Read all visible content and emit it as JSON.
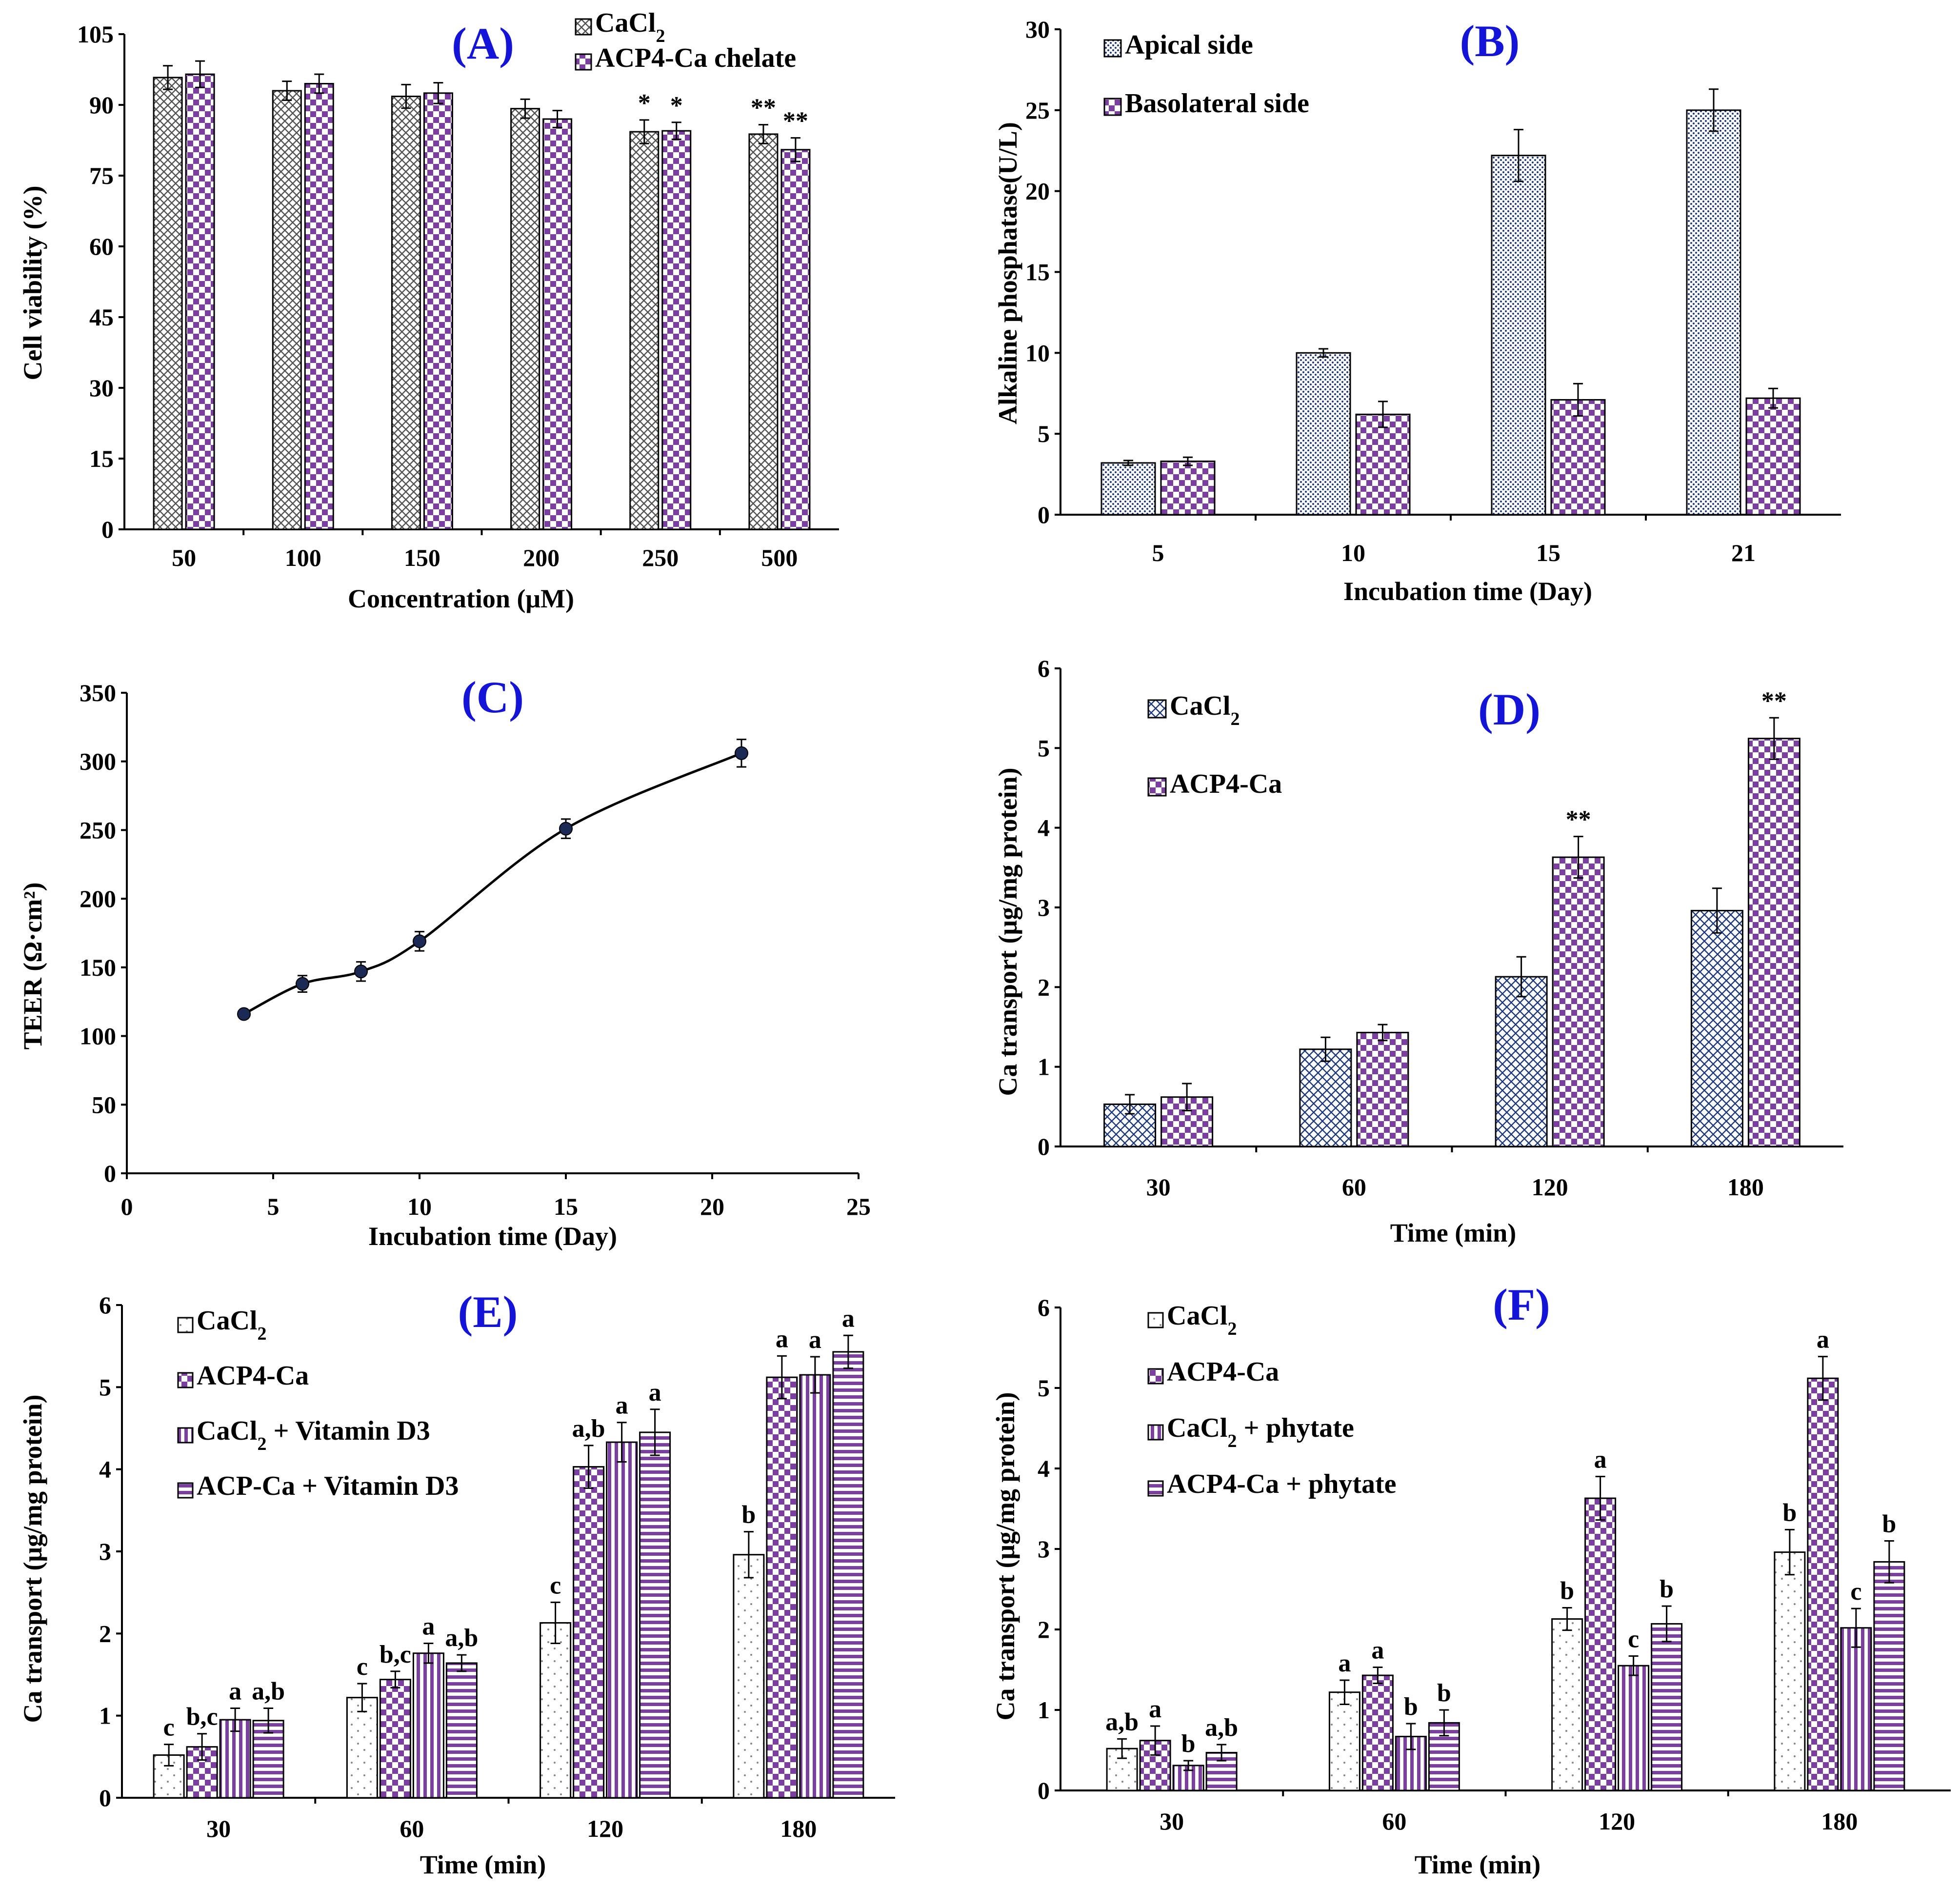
{
  "colors": {
    "purple": "#7b3fa0",
    "blue_dark": "#1f3a7a",
    "gray": "#6a6a6a",
    "title_blue": "#1414d8"
  },
  "chart_data": [
    {
      "panel": "(A)",
      "type": "bar",
      "xlabel": "Concentration (μM)",
      "ylabel": "Cell viability (%)",
      "categories": [
        "50",
        "100",
        "150",
        "200",
        "250",
        "500"
      ],
      "ylim": [
        0,
        105
      ],
      "yticks": [
        "0",
        "15",
        "30",
        "45",
        "60",
        "75",
        "90",
        "105"
      ],
      "legend": [
        {
          "text": "CaCl",
          "sub": "2"
        },
        {
          "text": "ACP4-Ca chelate",
          "sub": ""
        }
      ],
      "series": [
        {
          "name": "CaCl2",
          "pattern": "cross",
          "values": [
            95.8,
            93.0,
            91.8,
            89.2,
            84.3,
            83.8
          ],
          "errors": [
            2.5,
            2.0,
            2.5,
            2.0,
            2.5,
            2.0
          ],
          "annot": [
            "",
            "",
            "",
            "",
            "*",
            "**"
          ]
        },
        {
          "name": "ACP4-Ca chelate",
          "pattern": "check",
          "values": [
            96.5,
            94.5,
            92.5,
            87.0,
            84.5,
            80.5
          ],
          "errors": [
            2.8,
            2.0,
            2.2,
            1.8,
            1.8,
            2.5
          ],
          "annot": [
            "",
            "",
            "",
            "",
            "*",
            "**"
          ]
        }
      ]
    },
    {
      "panel": "(B)",
      "type": "bar",
      "xlabel": "Incubation time (Day)",
      "ylabel": "Alkaline phosphatase(U/L)",
      "categories": [
        "5",
        "10",
        "15",
        "21"
      ],
      "ylim": [
        0,
        30
      ],
      "yticks": [
        "0",
        "5",
        "10",
        "15",
        "20",
        "25",
        "30"
      ],
      "legend": [
        {
          "text": "Apical side",
          "sub": ""
        },
        {
          "text": "Basolateral side",
          "sub": ""
        }
      ],
      "series": [
        {
          "name": "Apical side",
          "pattern": "dots",
          "values": [
            3.2,
            10.0,
            22.2,
            25.0
          ],
          "errors": [
            0.15,
            0.25,
            1.6,
            1.3
          ],
          "annot": [
            "",
            "",
            "",
            ""
          ]
        },
        {
          "name": "Basolateral side",
          "pattern": "check",
          "values": [
            3.3,
            6.2,
            7.1,
            7.2
          ],
          "errors": [
            0.25,
            0.8,
            1.0,
            0.6
          ],
          "annot": [
            "",
            "",
            "",
            ""
          ]
        }
      ]
    },
    {
      "panel": "(C)",
      "type": "line",
      "xlabel": "Incubation time (Day)",
      "ylabel": "TEER (Ω·cm²)",
      "x": [
        4,
        6,
        8,
        10,
        15,
        21
      ],
      "y": [
        116,
        138,
        147,
        169,
        251,
        306
      ],
      "errors": [
        3,
        6,
        7,
        7,
        7,
        10
      ],
      "xlim": [
        0,
        25
      ],
      "xticks": [
        "0",
        "5",
        "10",
        "15",
        "20",
        "25"
      ],
      "ylim": [
        0,
        350
      ],
      "yticks": [
        "0",
        "50",
        "100",
        "150",
        "200",
        "250",
        "300",
        "350"
      ]
    },
    {
      "panel": "(D)",
      "type": "bar",
      "xlabel": "Time (min)",
      "ylabel": "Ca transport (μg/mg protein)",
      "categories": [
        "30",
        "60",
        "120",
        "180"
      ],
      "ylim": [
        0,
        6
      ],
      "yticks": [
        "0",
        "1",
        "2",
        "3",
        "4",
        "5",
        "6"
      ],
      "legend": [
        {
          "text": "CaCl",
          "sub": "2"
        },
        {
          "text": "ACP4-Ca",
          "sub": ""
        }
      ],
      "series": [
        {
          "name": "CaCl2",
          "pattern": "cross_blue",
          "values": [
            0.53,
            1.22,
            2.13,
            2.96
          ],
          "errors": [
            0.12,
            0.15,
            0.25,
            0.28
          ],
          "annot": [
            "",
            "",
            "",
            ""
          ]
        },
        {
          "name": "ACP4-Ca",
          "pattern": "check",
          "values": [
            0.62,
            1.43,
            3.63,
            5.12
          ],
          "errors": [
            0.17,
            0.1,
            0.26,
            0.26
          ],
          "annot": [
            "",
            "",
            "**",
            "**"
          ]
        }
      ]
    },
    {
      "panel": "(E)",
      "type": "bar",
      "xlabel": "Time (min)",
      "ylabel": "Ca transport (μg/mg protein)",
      "categories": [
        "30",
        "60",
        "120",
        "180"
      ],
      "ylim": [
        0,
        6
      ],
      "yticks": [
        "0",
        "1",
        "2",
        "3",
        "4",
        "5",
        "6"
      ],
      "legend": [
        {
          "text": "CaCl",
          "sub": "2",
          "after": ""
        },
        {
          "text": "ACP4-Ca",
          "sub": "",
          "after": ""
        },
        {
          "text": "CaCl",
          "sub": "2",
          "after": " + Vitamin D3"
        },
        {
          "text": "ACP-Ca + Vitamin D3",
          "sub": "",
          "after": ""
        }
      ],
      "series": [
        {
          "name": "CaCl2",
          "pattern": "sparse",
          "values": [
            0.52,
            1.22,
            2.13,
            2.96
          ],
          "errors": [
            0.13,
            0.17,
            0.25,
            0.28
          ],
          "annot": [
            "c",
            "c",
            "c",
            "b"
          ]
        },
        {
          "name": "ACP4-Ca",
          "pattern": "check",
          "values": [
            0.62,
            1.44,
            4.03,
            5.12
          ],
          "errors": [
            0.16,
            0.1,
            0.26,
            0.26
          ],
          "annot": [
            "b,c",
            "b,c",
            "a,b",
            "a"
          ]
        },
        {
          "name": "CaCl2 + Vitamin D3",
          "pattern": "vstripe",
          "values": [
            0.95,
            1.76,
            4.33,
            5.15
          ],
          "errors": [
            0.14,
            0.12,
            0.24,
            0.22
          ],
          "annot": [
            "a",
            "a",
            "a",
            "a"
          ]
        },
        {
          "name": "ACP-Ca + Vitamin D3",
          "pattern": "hstripe",
          "values": [
            0.94,
            1.64,
            4.45,
            5.43
          ],
          "errors": [
            0.15,
            0.1,
            0.28,
            0.2
          ],
          "annot": [
            "a,b",
            "a,b",
            "a",
            "a"
          ]
        }
      ]
    },
    {
      "panel": "(F)",
      "type": "bar",
      "xlabel": "Time (min)",
      "ylabel": "Ca transport (μg/mg protein)",
      "categories": [
        "30",
        "60",
        "120",
        "180"
      ],
      "ylim": [
        0,
        6
      ],
      "yticks": [
        "0",
        "1",
        "2",
        "3",
        "4",
        "5",
        "6"
      ],
      "legend": [
        {
          "text": "CaCl",
          "sub": "2",
          "after": ""
        },
        {
          "text": "ACP4-Ca",
          "sub": "",
          "after": ""
        },
        {
          "text": "CaCl",
          "sub": "2",
          "after": " + phytate"
        },
        {
          "text": "ACP4-Ca + phytate",
          "sub": "",
          "after": ""
        }
      ],
      "series": [
        {
          "name": "CaCl2",
          "pattern": "sparse",
          "values": [
            0.52,
            1.22,
            2.13,
            2.96
          ],
          "errors": [
            0.12,
            0.15,
            0.14,
            0.28
          ],
          "annot": [
            "a,b",
            "a",
            "b",
            "b"
          ]
        },
        {
          "name": "ACP4-Ca",
          "pattern": "check",
          "values": [
            0.62,
            1.43,
            3.63,
            5.12
          ],
          "errors": [
            0.18,
            0.1,
            0.27,
            0.27
          ],
          "annot": [
            "a",
            "a",
            "a",
            "a"
          ]
        },
        {
          "name": "CaCl2 + phytate",
          "pattern": "vstripe",
          "values": [
            0.31,
            0.67,
            1.55,
            2.02
          ],
          "errors": [
            0.06,
            0.16,
            0.12,
            0.24
          ],
          "annot": [
            "b",
            "b",
            "c",
            "c"
          ]
        },
        {
          "name": "ACP4-Ca + phytate",
          "pattern": "hstripe",
          "values": [
            0.47,
            0.84,
            2.07,
            2.84
          ],
          "errors": [
            0.1,
            0.16,
            0.22,
            0.26
          ],
          "annot": [
            "a,b",
            "b",
            "b",
            "b"
          ]
        }
      ]
    }
  ]
}
